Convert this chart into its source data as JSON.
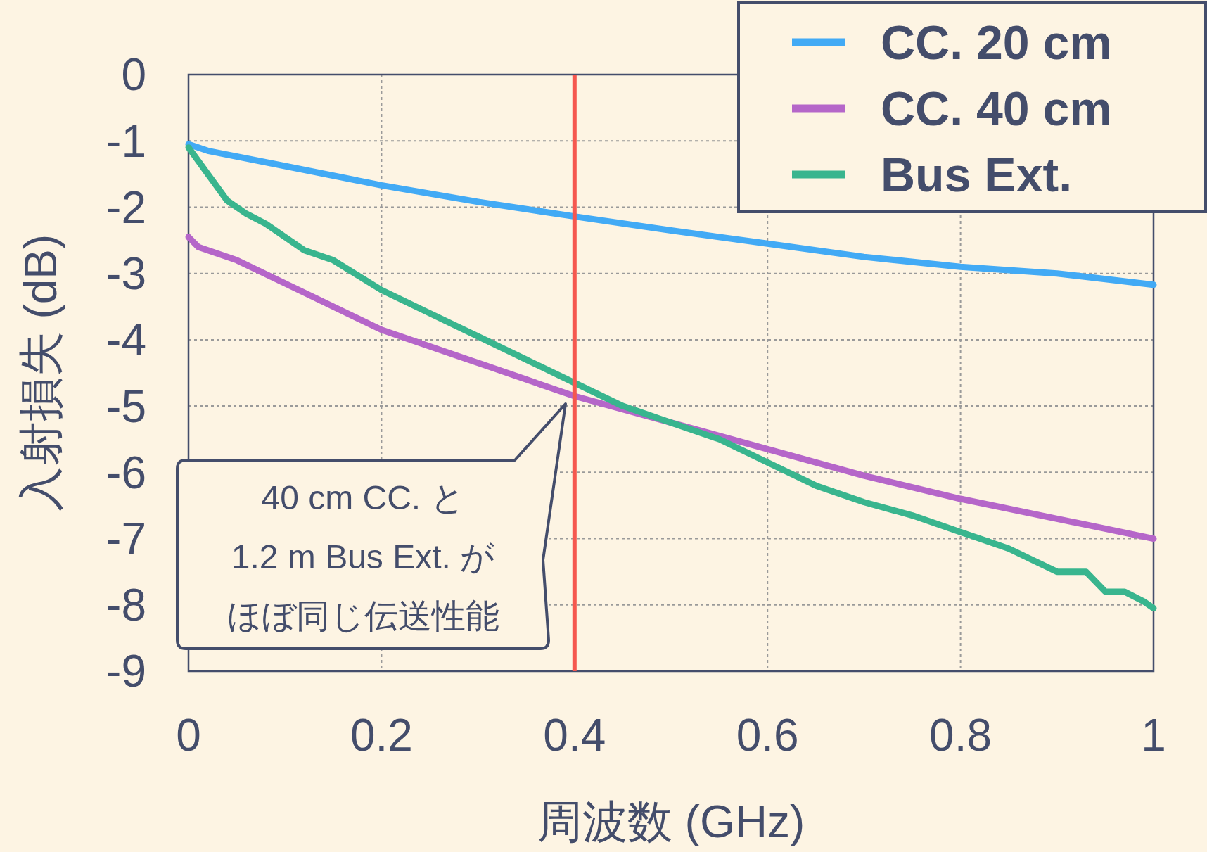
{
  "chart_data": {
    "type": "line",
    "xlabel": "周波数 (GHz)",
    "ylabel": "入射損失 (dB)",
    "xlim": [
      0,
      1
    ],
    "xticks": [
      0,
      0.2,
      0.4,
      0.6,
      0.8,
      1
    ],
    "ylim": [
      -9,
      0
    ],
    "yticks": [
      -9,
      -8,
      -7,
      -6,
      -5,
      -4,
      -3,
      -2,
      -1,
      0
    ],
    "grid": true,
    "legend": "top right",
    "line_style": "solid",
    "marker": "none",
    "series": [
      {
        "name": "CC. 20 cm",
        "color": "#42aaf5",
        "x": [
          0,
          0.02,
          0.1,
          0.2,
          0.3,
          0.4,
          0.5,
          0.6,
          0.7,
          0.8,
          0.9,
          1
        ],
        "values": [
          -1.05,
          -1.15,
          -1.38,
          -1.67,
          -1.92,
          -2.14,
          -2.35,
          -2.55,
          -2.75,
          -2.9,
          -3.0,
          -3.17
        ]
      },
      {
        "name": "CC. 40 cm",
        "color": "#b566c9",
        "x": [
          0,
          0.01,
          0.05,
          0.1,
          0.2,
          0.3,
          0.4,
          0.5,
          0.6,
          0.7,
          0.8,
          0.9,
          1
        ],
        "values": [
          -2.45,
          -2.6,
          -2.8,
          -3.15,
          -3.85,
          -4.35,
          -4.85,
          -5.25,
          -5.65,
          -6.05,
          -6.4,
          -6.7,
          -7.0
        ]
      },
      {
        "name": "Bus Ext.",
        "color": "#39b58e",
        "x": [
          0,
          0.02,
          0.04,
          0.06,
          0.08,
          0.1,
          0.12,
          0.15,
          0.2,
          0.25,
          0.3,
          0.35,
          0.4,
          0.45,
          0.5,
          0.55,
          0.6,
          0.65,
          0.7,
          0.75,
          0.8,
          0.85,
          0.9,
          0.93,
          0.95,
          0.97,
          0.99,
          1
        ],
        "values": [
          -1.1,
          -1.5,
          -1.9,
          -2.1,
          -2.25,
          -2.45,
          -2.65,
          -2.8,
          -3.25,
          -3.6,
          -3.95,
          -4.3,
          -4.65,
          -5.0,
          -5.25,
          -5.5,
          -5.85,
          -6.2,
          -6.45,
          -6.65,
          -6.9,
          -7.15,
          -7.5,
          -7.5,
          -7.8,
          -7.8,
          -7.95,
          -8.05
        ]
      }
    ],
    "ref_lines": [
      {
        "axis": "x",
        "value": 0.4,
        "color": "#f5574f"
      }
    ],
    "annotations": [
      "40 cm CC. と",
      "1.2 m Bus Ext. が",
      "ほぼ同じ伝送性能"
    ]
  }
}
